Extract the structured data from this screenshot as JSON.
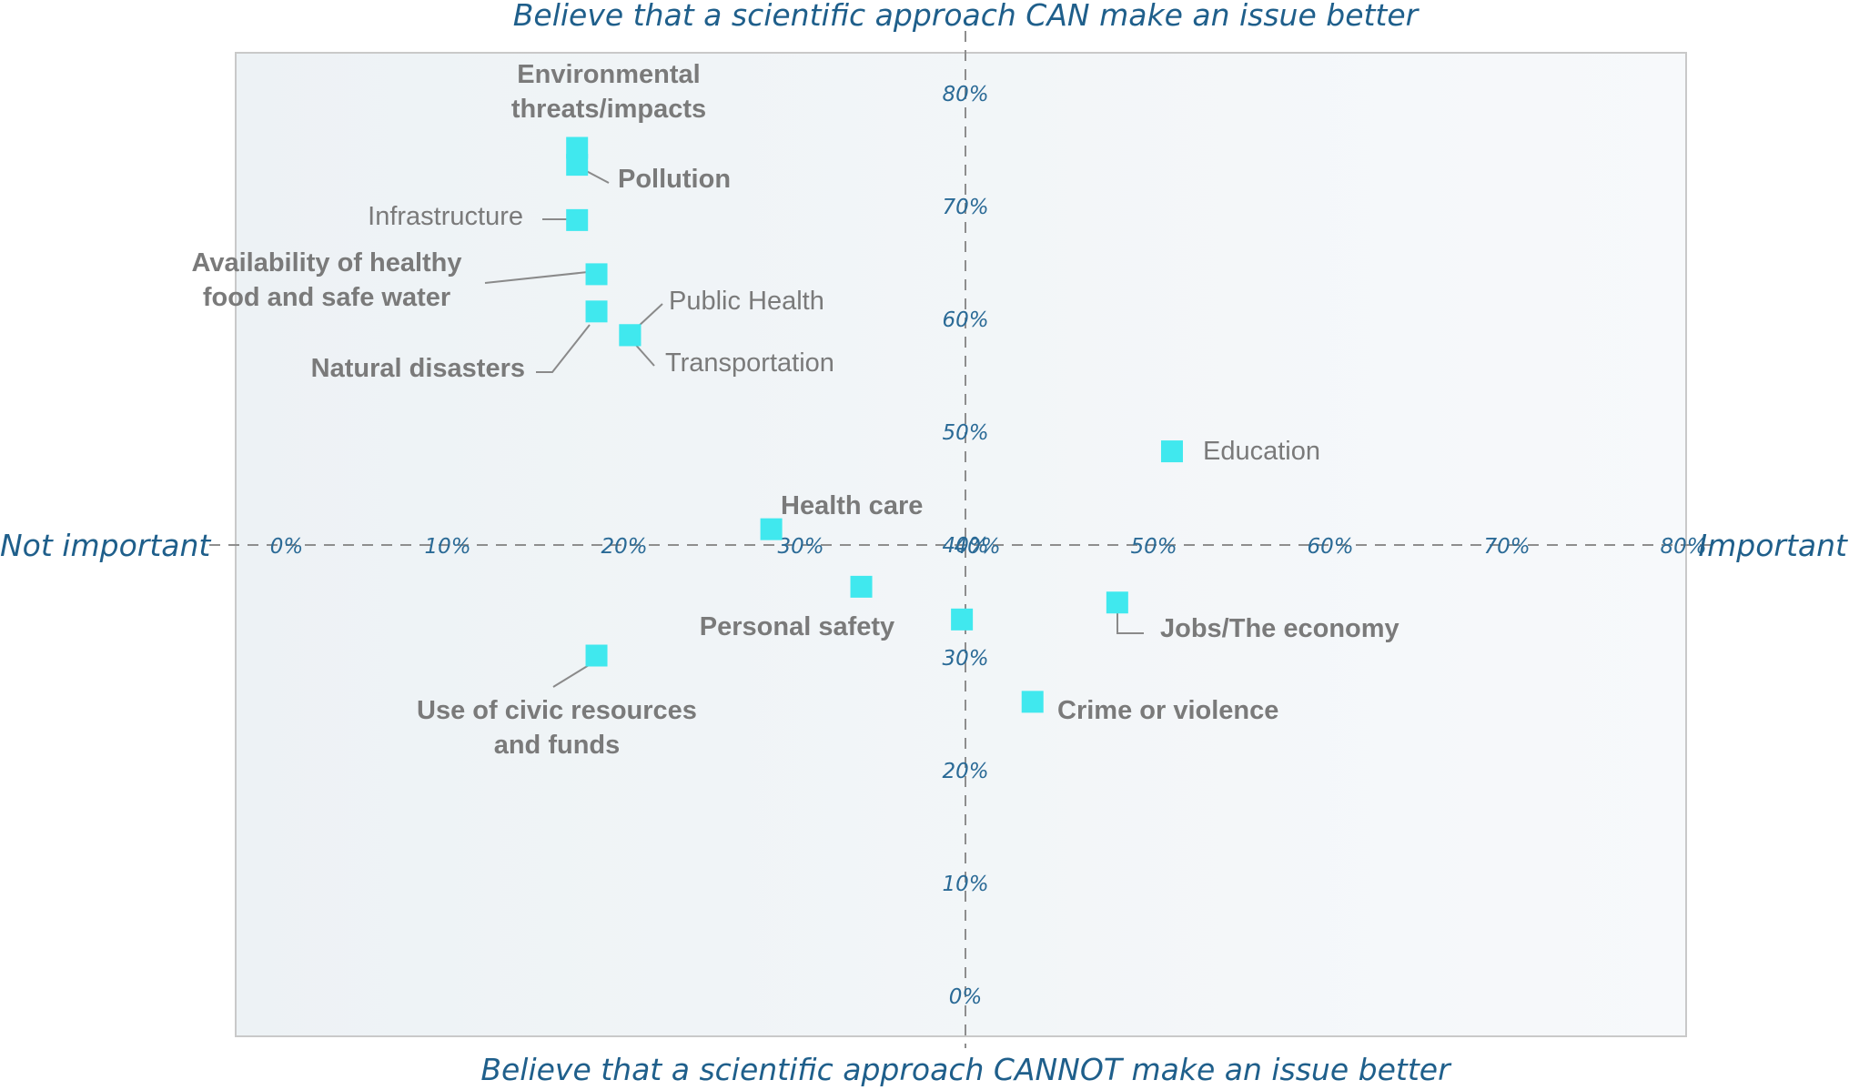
{
  "chart_data": {
    "type": "scatter",
    "title": "",
    "ylabel_top": "Believe that a scientific approach CAN make an issue better",
    "ylabel_bottom": "Believe that a scientific approach CANNOT make an issue better",
    "xlabel_left": "Not important",
    "xlabel_right": "Important",
    "xlim": [
      0,
      80
    ],
    "ylim": [
      0,
      80
    ],
    "x_ticks": [
      "0%",
      "10%",
      "20%",
      "30%",
      "40%",
      "50%",
      "60%",
      "70%",
      "80%"
    ],
    "y_ticks": [
      "0%",
      "10%",
      "20%",
      "30%",
      "40%",
      "50%",
      "60%",
      "70%",
      "80%"
    ],
    "axis_cross": [
      40,
      40
    ],
    "grid": false,
    "marker_color": "#40e8ee",
    "points": [
      {
        "name": "Environmental threats/impacts",
        "lines": [
          "Environmental",
          "threats/impacts"
        ],
        "x": 18.0,
        "y": 75.2
      },
      {
        "name": "Pollution",
        "lines": [
          "Pollution"
        ],
        "x": 18.0,
        "y": 73.7
      },
      {
        "name": "Infrastructure",
        "lines": [
          "Infrastructure"
        ],
        "x": 18.0,
        "y": 68.8
      },
      {
        "name": "Availability of healthy food and safe water",
        "lines": [
          "Availability of healthy",
          "food and safe water"
        ],
        "x": 19.1,
        "y": 64.0
      },
      {
        "name": "Natural disasters",
        "lines": [
          "Natural disasters"
        ],
        "x": 19.1,
        "y": 60.7
      },
      {
        "name": "Public Health",
        "lines": [
          "Public Health"
        ],
        "x": 21.0,
        "y": 58.6
      },
      {
        "name": "Transportation",
        "lines": [
          "Transportation"
        ],
        "x": 21.0,
        "y": 58.6
      },
      {
        "name": "Education",
        "lines": [
          "Education"
        ],
        "x": 51.7,
        "y": 48.3
      },
      {
        "name": "Health care",
        "lines": [
          "Health care"
        ],
        "x": 29.0,
        "y": 41.4
      },
      {
        "name": "Personal safety",
        "lines": [
          "Personal safety"
        ],
        "x": 34.1,
        "y": 36.3
      },
      {
        "name": "",
        "lines": [],
        "x": 39.8,
        "y": 33.4
      },
      {
        "name": "Jobs/The economy",
        "lines": [
          "Jobs/The economy"
        ],
        "x": 48.6,
        "y": 34.9
      },
      {
        "name": "Crime or violence",
        "lines": [
          "Crime or violence"
        ],
        "x": 43.8,
        "y": 26.1
      },
      {
        "name": "Use of civic resources and funds",
        "lines": [
          "Use of civic resources",
          "and funds"
        ],
        "x": 19.1,
        "y": 30.2
      }
    ]
  }
}
